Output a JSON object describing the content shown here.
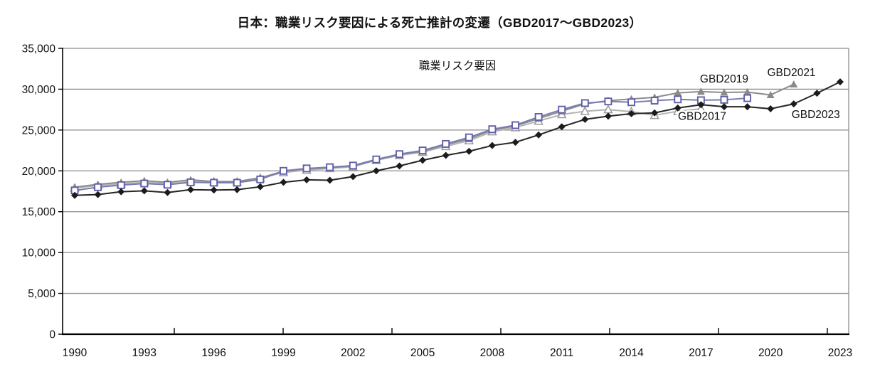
{
  "chart_data": {
    "type": "line",
    "title": "日本：職業リスク要因による死亡推計の変遷（GBD2017～GBD2023）",
    "plot_label": "職業リスク要因",
    "xlabel": "",
    "ylabel": "",
    "ylim": [
      0,
      35000
    ],
    "grid": "horizontal",
    "x_start_year": 1990,
    "x_end_year": 2023,
    "x_tick_labels": [
      "1990",
      "1993",
      "1996",
      "1999",
      "2002",
      "2005",
      "2008",
      "2011",
      "2014",
      "2017",
      "2020",
      "2023"
    ],
    "y_ticks": [
      {
        "value": 35000,
        "label": "35,000"
      },
      {
        "value": 30000,
        "label": "30,000"
      },
      {
        "value": 25000,
        "label": "25,000"
      },
      {
        "value": 20000,
        "label": "20,000"
      },
      {
        "value": 15000,
        "label": "15,000"
      },
      {
        "value": 10000,
        "label": "10,000"
      },
      {
        "value": 5000,
        "label": "5,000"
      },
      {
        "value": 0,
        "label": "0"
      }
    ],
    "colors": {
      "gbd2017_line": "#b3b3b3",
      "gbd2017_marker_stroke": "#9a9a9a",
      "gbd2019_line": "#7b7bb5",
      "gbd2019_marker_stroke": "#5f5fa8",
      "gbd2021_line": "#8c8c8c",
      "gbd2021_marker_fill": "#8a8a8a",
      "gbd2023_line": "#262626",
      "gbd2023_marker_fill": "#1b1b1b",
      "gridline": "#8c8c8c",
      "axis": "#000000",
      "text": "#111111"
    },
    "series": [
      {
        "name": "GBD2017",
        "start_year": 1990,
        "marker": "triangle-open",
        "line_color": "#b3b3b3",
        "marker_fill": "#ffffff",
        "marker_stroke": "#9a9a9a",
        "values": [
          17900,
          18200,
          18400,
          18600,
          18450,
          18700,
          18650,
          18650,
          19100,
          19800,
          20100,
          20300,
          20500,
          21300,
          21900,
          22300,
          23000,
          23700,
          24800,
          25300,
          26100,
          26900,
          27300,
          27500,
          27250,
          26800,
          27300,
          27600
        ]
      },
      {
        "name": "GBD2021",
        "start_year": 1990,
        "marker": "triangle-filled",
        "line_color": "#8c8c8c",
        "marker_fill": "#8a8a8a",
        "marker_stroke": "#787878",
        "values": [
          18000,
          18350,
          18600,
          18800,
          18600,
          18900,
          18700,
          18700,
          19150,
          19950,
          20250,
          20400,
          20600,
          21350,
          22000,
          22400,
          23200,
          23900,
          25000,
          25500,
          26400,
          27300,
          28200,
          28600,
          28800,
          29000,
          29550,
          29700,
          29600,
          29650,
          29300,
          30600
        ]
      },
      {
        "name": "GBD2019",
        "start_year": 1990,
        "marker": "square-open",
        "line_color": "#7b7bb5",
        "marker_fill": "#ffffff",
        "marker_stroke": "#5f5fa8",
        "values": [
          17600,
          18000,
          18250,
          18450,
          18300,
          18600,
          18550,
          18550,
          18950,
          20000,
          20300,
          20450,
          20650,
          21400,
          22050,
          22500,
          23300,
          24100,
          25100,
          25600,
          26600,
          27500,
          28300,
          28500,
          28400,
          28600,
          28750,
          28650,
          28700,
          28900
        ]
      },
      {
        "name": "GBD2023",
        "start_year": 1990,
        "marker": "diamond-filled",
        "line_color": "#262626",
        "marker_fill": "#1b1b1b",
        "marker_stroke": "#1b1b1b",
        "values": [
          17000,
          17100,
          17450,
          17550,
          17350,
          17700,
          17650,
          17700,
          18050,
          18600,
          18900,
          18850,
          19300,
          20000,
          20600,
          21300,
          21900,
          22400,
          23100,
          23500,
          24400,
          25400,
          26300,
          26700,
          27000,
          27100,
          27700,
          28100,
          27850,
          27850,
          27600,
          28200,
          29500,
          30900
        ]
      }
    ],
    "annotations": [
      {
        "text": "職業リスク要因",
        "year": 2006.5,
        "value": 32900
      },
      {
        "text": "GBD2019",
        "year": 2018.0,
        "value": 31300
      },
      {
        "text": "GBD2021",
        "year": 2020.9,
        "value": 32100
      },
      {
        "text": "GBD2017",
        "year": 2017.05,
        "value": 26750
      },
      {
        "text": "GBD2023",
        "year": 2021.95,
        "value": 26950
      }
    ]
  }
}
